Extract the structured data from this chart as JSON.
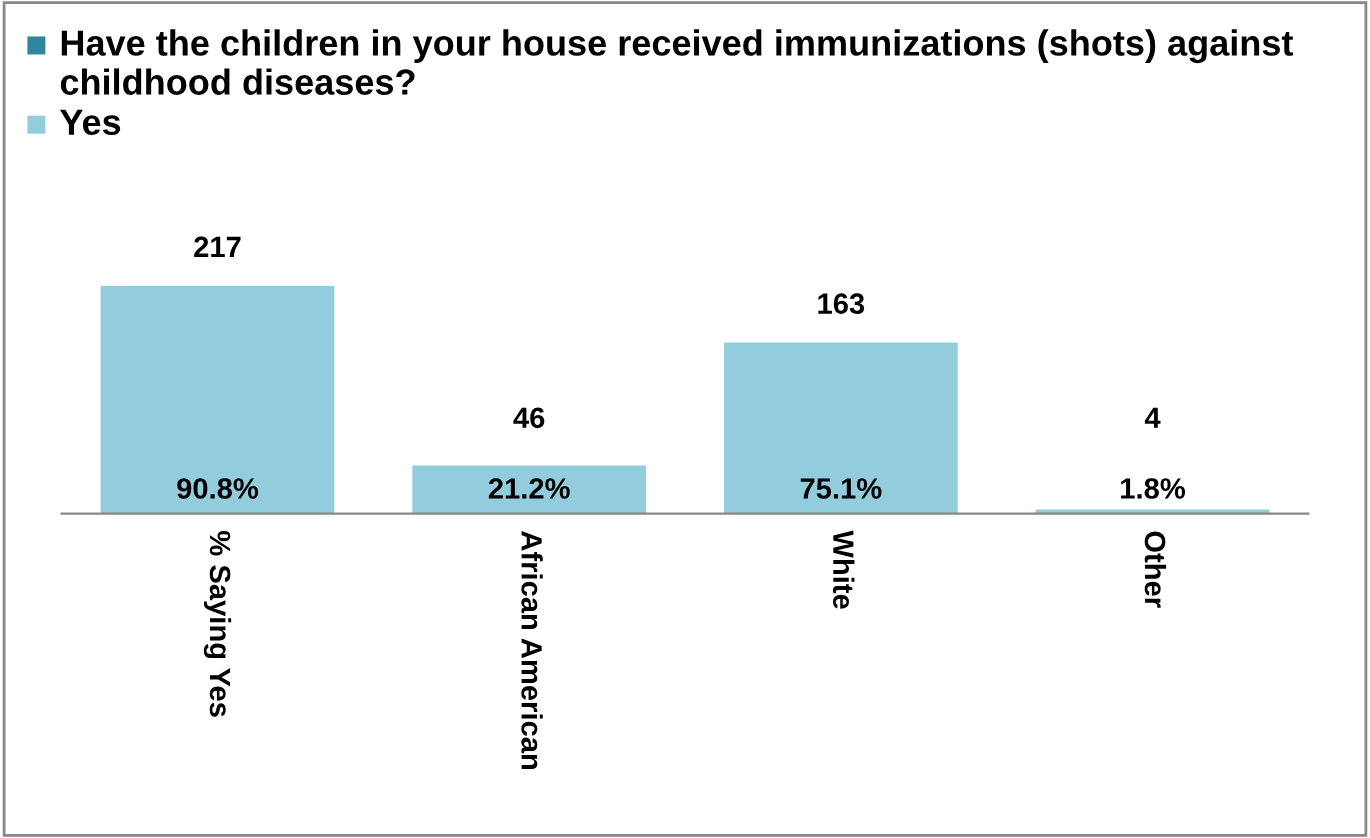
{
  "chart_data": {
    "type": "bar",
    "categories": [
      "% Saying Yes",
      "African American",
      "White",
      "Other"
    ],
    "series": [
      {
        "name": "Have the children in your house received immunizations (shots) against childhood diseases?",
        "color": "#31859c",
        "values": [
          null,
          null,
          null,
          null
        ]
      },
      {
        "name": "Yes",
        "color": "#93cddd",
        "values": [
          217,
          46,
          163,
          4
        ]
      }
    ],
    "annotations": [
      "90.8%",
      "21.2%",
      "75.1%",
      "1.8%"
    ],
    "data_labels": true,
    "legend": "top left",
    "grid": false
  }
}
